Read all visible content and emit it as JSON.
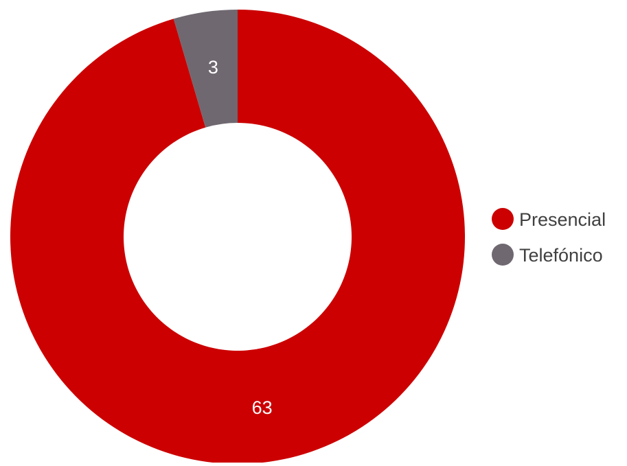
{
  "chart_data": {
    "type": "pie",
    "variant": "donut",
    "categories": [
      "Presencial",
      "Telefónico"
    ],
    "values": [
      63,
      3
    ],
    "colors": [
      "#cc0000",
      "#6f6870"
    ],
    "data_labels": [
      "63",
      "3"
    ],
    "legend": {
      "placement": "right",
      "entries": [
        "Presencial",
        "Telefónico"
      ]
    },
    "title": ""
  }
}
